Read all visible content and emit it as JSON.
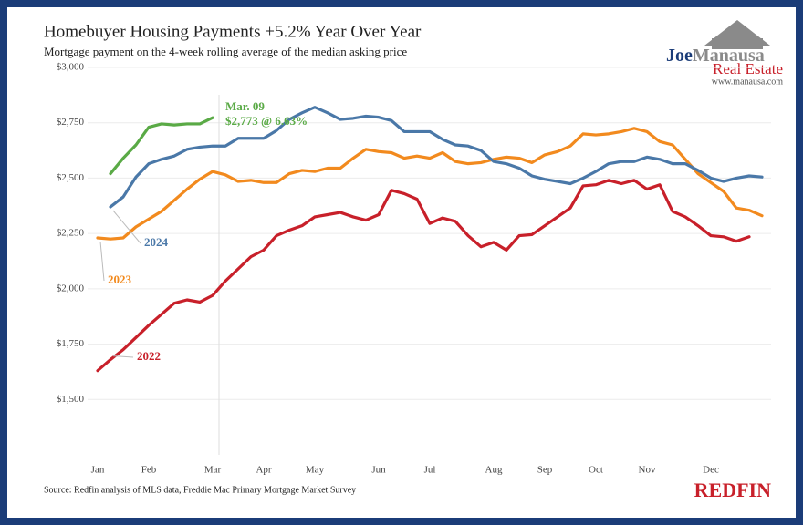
{
  "chart_data": {
    "type": "line",
    "title": "Homebuyer Housing Payments +5.2% Year Over Year",
    "subtitle": "Mortgage payment on the 4-week rolling average of the median asking price",
    "source": "Source: Redfin analysis of MLS data, Freddie Mac Primary Mortgage Market Survey",
    "logo_name": [
      "Joe",
      "Manausa"
    ],
    "logo_sub": "Real Estate",
    "logo_url": "www.manausa.com",
    "logo_redfin": "REDFIN",
    "annotation": [
      "Mar. 09",
      "$2,773 @ 6.63%"
    ],
    "grid": true,
    "categories": [
      "Jan",
      null,
      null,
      null,
      "Feb",
      null,
      null,
      null,
      null,
      "Mar",
      null,
      null,
      null,
      "Apr",
      null,
      null,
      null,
      "May",
      null,
      null,
      null,
      null,
      "Jun",
      null,
      null,
      null,
      "Jul",
      null,
      null,
      null,
      null,
      "Aug",
      null,
      null,
      null,
      "Sep",
      null,
      null,
      null,
      "Oct",
      null,
      null,
      null,
      "Nov",
      null,
      null,
      null,
      null,
      "Dec",
      null,
      null,
      null,
      null
    ],
    "ylim": [
      1250,
      3000
    ],
    "yticks": [
      {
        "value": 1500,
        "label": "$1,500"
      },
      {
        "value": 1750,
        "label": "$1,750"
      },
      {
        "value": 2000,
        "label": "$2,000"
      },
      {
        "value": 2250,
        "label": "$2,250"
      },
      {
        "value": 2500,
        "label": "$2,500"
      },
      {
        "value": 2750,
        "label": "$2,750"
      },
      {
        "value": 3000,
        "label": "$3,000"
      }
    ],
    "series": [
      {
        "name": "2022",
        "color": "#c8202a",
        "values": [
          1630,
          1680,
          1725,
          1780,
          1835,
          1885,
          1935,
          1950,
          1940,
          1970,
          2035,
          2090,
          2145,
          2175,
          2240,
          2265,
          2285,
          2325,
          2335,
          2345,
          2325,
          2310,
          2335,
          2445,
          2430,
          2405,
          2295,
          2320,
          2305,
          2240,
          2190,
          2210,
          2175,
          2240,
          2245,
          2285,
          2325,
          2365,
          2465,
          2470,
          2490,
          2475,
          2490,
          2450,
          2470,
          2350,
          2325,
          2285,
          2240,
          2235,
          2215,
          2235,
          null
        ]
      },
      {
        "name": "2023",
        "color": "#f28a1e",
        "values": [
          2230,
          2225,
          2230,
          2280,
          2315,
          2350,
          2400,
          2450,
          2495,
          2530,
          2515,
          2485,
          2490,
          2480,
          2480,
          2520,
          2535,
          2530,
          2545,
          2545,
          2590,
          2630,
          2620,
          2615,
          2590,
          2600,
          2590,
          2615,
          2575,
          2565,
          2570,
          2585,
          2595,
          2590,
          2570,
          2605,
          2620,
          2645,
          2700,
          2695,
          2700,
          2710,
          2725,
          2710,
          2665,
          2650,
          2585,
          2520,
          2480,
          2440,
          2365,
          2355,
          2330
        ]
      },
      {
        "name": "2024",
        "color": "#4a78a8",
        "values": [
          null,
          2370,
          2415,
          2505,
          2565,
          2585,
          2600,
          2630,
          2640,
          2645,
          2645,
          2680,
          2680,
          2680,
          2715,
          2765,
          2795,
          2820,
          2795,
          2765,
          2770,
          2780,
          2775,
          2760,
          2710,
          2710,
          2710,
          2675,
          2650,
          2645,
          2625,
          2575,
          2565,
          2545,
          2510,
          2495,
          2485,
          2475,
          2500,
          2530,
          2565,
          2575,
          2575,
          2595,
          2585,
          2565,
          2565,
          2535,
          2500,
          2485,
          2500,
          2510,
          2505
        ]
      },
      {
        "color": "#5aaa46",
        "values": [
          null,
          2520,
          2590,
          2650,
          2730,
          2745,
          2740,
          2745,
          2745,
          2773,
          null,
          null,
          null,
          null,
          null,
          null,
          null,
          null,
          null,
          null,
          null,
          null,
          null,
          null,
          null,
          null,
          null,
          null,
          null,
          null,
          null,
          null,
          null,
          null,
          null,
          null,
          null,
          null,
          null,
          null,
          null,
          null,
          null,
          null,
          null,
          null,
          null,
          null,
          null,
          null,
          null,
          null,
          null
        ]
      }
    ]
  }
}
